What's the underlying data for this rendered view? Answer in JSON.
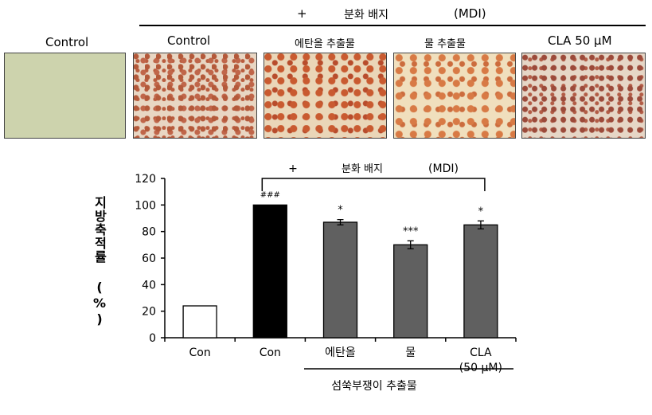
{
  "header": {
    "plus": "+",
    "medium_label": "분화 배지",
    "medium_abbr": "(MDI)"
  },
  "panels": {
    "untreated_control": "Control",
    "mdi_control": "Control",
    "ethanol_extract": "에탄올 추출물",
    "water_extract": "물 추출물",
    "cla": "CLA 50 μM"
  },
  "colors": {
    "untreated_bar": "#ffffff",
    "control_bar": "#000000",
    "treated_bar": "#606060"
  },
  "chart_data": {
    "type": "bar",
    "categories": [
      "Con",
      "Con",
      "에탄올",
      "물",
      "CLA\n(50 μM)"
    ],
    "values": [
      24,
      100,
      87,
      70,
      85
    ],
    "errors": [
      0,
      0,
      2,
      3,
      3
    ],
    "significance": [
      "",
      "###",
      "*",
      "***",
      "*"
    ],
    "ylabel": "지방축적률 (%)",
    "ylim": [
      0,
      120
    ],
    "yticks": [
      0,
      20,
      40,
      60,
      80,
      100,
      120
    ],
    "bracket_label": {
      "plus": "+",
      "medium": "분화 배지",
      "abbr": "(MDI)"
    },
    "group_label": "섬쑥부쟁이 추출물",
    "grid": false,
    "legend": "none"
  }
}
